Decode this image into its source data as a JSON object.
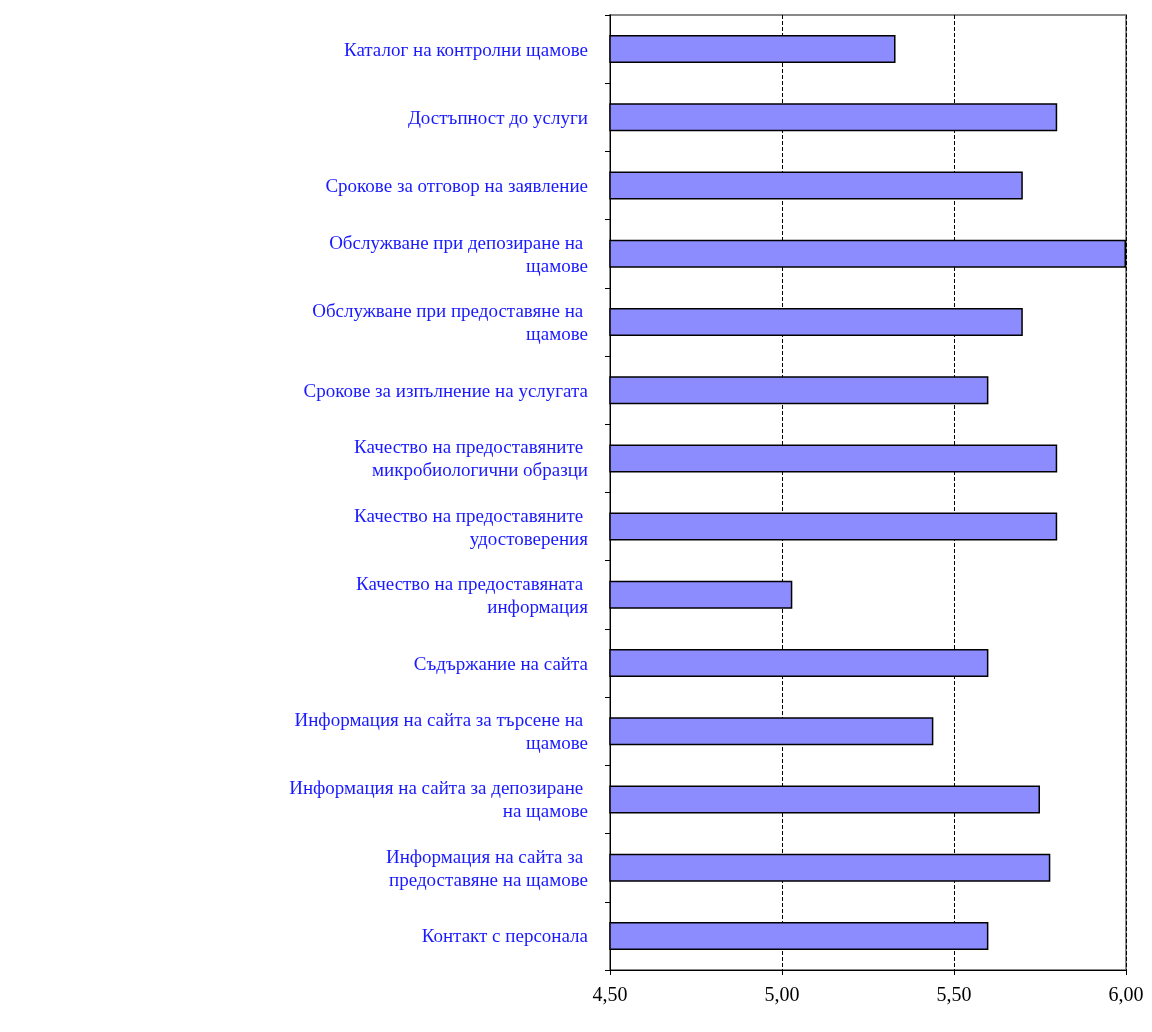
{
  "chart_data": {
    "type": "bar",
    "orientation": "horizontal",
    "categories": [
      "Каталог на контролни щамове",
      "Достъпност до услуги",
      "Срокове за отговор на заявление",
      "Обслужване при депозиране на щамове",
      "Обслужване при предоставяне на щамове",
      "Срокове за изпълнение на услугата",
      "Качество на предоставяните микробиологични образци",
      "Качество на предоставяните удостоверения",
      "Качество на предоставяната информация",
      "Съдържание на сайта",
      "Информация на сайта за търсене на щамове",
      "Информация на сайта за депозиране на щамове",
      "Информация на сайта за предоставяне на щамове",
      "Контакт с персонала"
    ],
    "values": [
      5.33,
      5.8,
      5.7,
      6.0,
      5.7,
      5.6,
      5.8,
      5.8,
      5.03,
      5.6,
      5.44,
      5.75,
      5.78,
      5.6
    ],
    "color": "#8c8cff",
    "xlim": [
      4.5,
      6.0
    ],
    "xticks": [
      {
        "value": 4.5,
        "label": "4,50"
      },
      {
        "value": 5.0,
        "label": "5,00"
      },
      {
        "value": 5.5,
        "label": "5,50"
      },
      {
        "value": 6.0,
        "label": "6,00"
      }
    ],
    "grid": "x"
  }
}
